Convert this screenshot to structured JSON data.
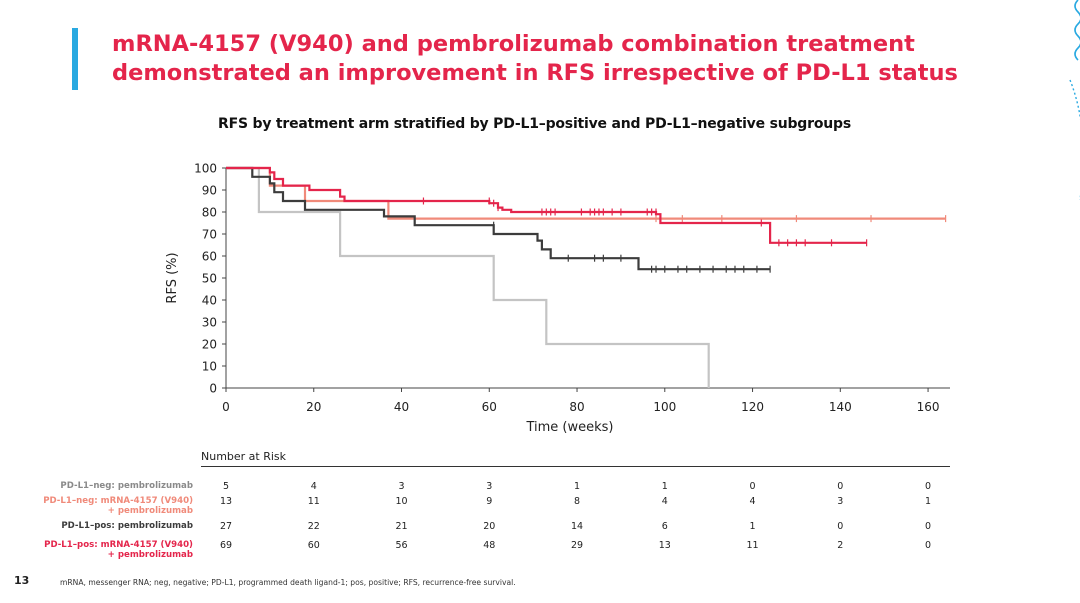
{
  "slide": {
    "title_line1": "mRNA-4157 (V940) and pembrolizumab combination treatment",
    "title_line2": "demonstrated an improvement in RFS irrespective of PD-L1 status",
    "page_number": "13",
    "footnote": "mRNA, messenger RNA; neg, negative; PD-L1, programmed death ligand-1; pos, positive; RFS, recurrence-free survival.",
    "colors": {
      "title": "#e4254b",
      "accent_bar": "#29a9e1",
      "decoration": "#29a9e1"
    }
  },
  "chart_data": {
    "type": "line",
    "title": "RFS by treatment arm stratified by PD-L1–positive and PD-L1–negative subgroups",
    "xlabel": "Time (weeks)",
    "ylabel": "RFS (%)",
    "xlim": [
      0,
      165
    ],
    "ylim": [
      0,
      100
    ],
    "xticks": [
      0,
      20,
      40,
      60,
      80,
      100,
      120,
      140,
      160
    ],
    "yticks": [
      0,
      10,
      20,
      30,
      40,
      50,
      60,
      70,
      80,
      90,
      100
    ],
    "step": true,
    "series": [
      {
        "name": "PD-L1–neg: pembrolizumab",
        "color": "#c4c4c4",
        "points": [
          [
            0,
            100
          ],
          [
            7.5,
            100
          ],
          [
            7.5,
            80
          ],
          [
            26,
            80
          ],
          [
            26,
            60
          ],
          [
            61,
            60
          ],
          [
            61,
            40
          ],
          [
            73,
            40
          ],
          [
            73,
            20
          ],
          [
            110,
            20
          ],
          [
            110,
            0
          ]
        ],
        "censors": []
      },
      {
        "name": "PD-L1–neg: mRNA-4157 (V940) + pembrolizumab",
        "color": "#f08a7a",
        "points": [
          [
            0,
            100
          ],
          [
            10,
            100
          ],
          [
            10,
            92
          ],
          [
            18,
            92
          ],
          [
            18,
            85
          ],
          [
            37,
            85
          ],
          [
            37,
            77
          ],
          [
            164,
            77
          ]
        ],
        "censors": [
          [
            98,
            77
          ],
          [
            104,
            77
          ],
          [
            113,
            77
          ],
          [
            130,
            77
          ],
          [
            147,
            77
          ],
          [
            164,
            77
          ]
        ]
      },
      {
        "name": "PD-L1–pos: pembrolizumab",
        "color": "#3c3c3c",
        "points": [
          [
            0,
            100
          ],
          [
            6,
            100
          ],
          [
            6,
            96
          ],
          [
            10,
            96
          ],
          [
            10,
            93
          ],
          [
            11,
            93
          ],
          [
            11,
            89
          ],
          [
            13,
            89
          ],
          [
            13,
            85
          ],
          [
            18,
            85
          ],
          [
            18,
            81
          ],
          [
            36,
            81
          ],
          [
            36,
            78
          ],
          [
            43,
            78
          ],
          [
            43,
            74
          ],
          [
            61,
            74
          ],
          [
            61,
            70
          ],
          [
            71,
            70
          ],
          [
            71,
            67
          ],
          [
            72,
            67
          ],
          [
            72,
            63
          ],
          [
            74,
            63
          ],
          [
            74,
            59
          ],
          [
            94,
            59
          ],
          [
            94,
            54
          ],
          [
            124,
            54
          ]
        ],
        "censors": [
          [
            61,
            74
          ],
          [
            78,
            59
          ],
          [
            84,
            59
          ],
          [
            86,
            59
          ],
          [
            90,
            59
          ],
          [
            97,
            54
          ],
          [
            98,
            54
          ],
          [
            100,
            54
          ],
          [
            103,
            54
          ],
          [
            105,
            54
          ],
          [
            108,
            54
          ],
          [
            111,
            54
          ],
          [
            114,
            54
          ],
          [
            116,
            54
          ],
          [
            118,
            54
          ],
          [
            121,
            54
          ],
          [
            124,
            54
          ]
        ]
      },
      {
        "name": "PD-L1–pos: mRNA-4157 (V940) + pembrolizumab",
        "color": "#e4254b",
        "points": [
          [
            0,
            100
          ],
          [
            10,
            100
          ],
          [
            10,
            98
          ],
          [
            11,
            98
          ],
          [
            11,
            95
          ],
          [
            13,
            95
          ],
          [
            13,
            92
          ],
          [
            19,
            92
          ],
          [
            19,
            90
          ],
          [
            26,
            90
          ],
          [
            26,
            87
          ],
          [
            27,
            87
          ],
          [
            27,
            85
          ],
          [
            60,
            85
          ],
          [
            60,
            84
          ],
          [
            62,
            84
          ],
          [
            62,
            82
          ],
          [
            63,
            82
          ],
          [
            63,
            81
          ],
          [
            65,
            81
          ],
          [
            65,
            80
          ],
          [
            98,
            80
          ],
          [
            98,
            79
          ],
          [
            99,
            79
          ],
          [
            99,
            75
          ],
          [
            124,
            75
          ],
          [
            124,
            66
          ],
          [
            146,
            66
          ]
        ],
        "censors": [
          [
            45,
            85
          ],
          [
            60,
            85
          ],
          [
            61,
            84
          ],
          [
            62,
            82
          ],
          [
            72,
            80
          ],
          [
            73,
            80
          ],
          [
            74,
            80
          ],
          [
            75,
            80
          ],
          [
            81,
            80
          ],
          [
            83,
            80
          ],
          [
            84,
            80
          ],
          [
            85,
            80
          ],
          [
            86,
            80
          ],
          [
            88,
            80
          ],
          [
            90,
            80
          ],
          [
            96,
            80
          ],
          [
            97,
            80
          ],
          [
            98,
            80
          ],
          [
            122,
            75
          ],
          [
            126,
            66
          ],
          [
            128,
            66
          ],
          [
            130,
            66
          ],
          [
            132,
            66
          ],
          [
            138,
            66
          ],
          [
            146,
            66
          ]
        ]
      }
    ],
    "risk_table": {
      "title": "Number at Risk",
      "timepoints": [
        0,
        20,
        40,
        60,
        80,
        100,
        120,
        140,
        160
      ],
      "rows": [
        {
          "label_lines": [
            "PD-L1–neg: pembrolizumab"
          ],
          "color": "#8a8a8a",
          "values": [
            "5",
            "4",
            "3",
            "3",
            "1",
            "1",
            "0",
            "0",
            "0"
          ]
        },
        {
          "label_lines": [
            "PD-L1–neg: mRNA-4157 (V940)",
            "+ pembrolizumab"
          ],
          "color": "#f08a7a",
          "values": [
            "13",
            "11",
            "10",
            "9",
            "8",
            "4",
            "4",
            "3",
            "1"
          ]
        },
        {
          "label_lines": [
            "PD-L1–pos: pembrolizumab"
          ],
          "color": "#3c3c3c",
          "values": [
            "27",
            "22",
            "21",
            "20",
            "14",
            "6",
            "1",
            "0",
            "0"
          ]
        },
        {
          "label_lines": [
            "PD-L1–pos: mRNA-4157 (V940)",
            "+ pembrolizumab"
          ],
          "color": "#e4254b",
          "values": [
            "69",
            "60",
            "56",
            "48",
            "29",
            "13",
            "11",
            "2",
            "0"
          ]
        }
      ]
    }
  }
}
